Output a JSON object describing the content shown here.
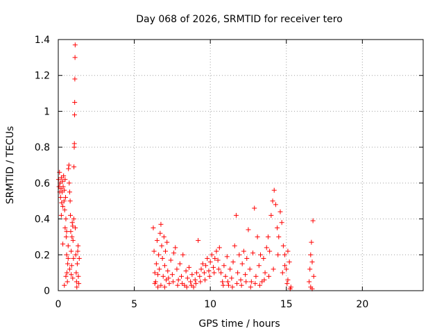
{
  "chart_data": {
    "type": "scatter",
    "title": "Day 068 of 2026, SRMTID for receiver tero",
    "xlabel": "GPS time / hours",
    "ylabel": "SRMTID / TECUs",
    "xlim": [
      0,
      24
    ],
    "ylim": [
      0,
      1.4
    ],
    "xticks": [
      0,
      5,
      10,
      15,
      20
    ],
    "xtick_labels": [
      "0",
      "5",
      "10",
      "15",
      "20"
    ],
    "yticks": [
      0,
      0.2,
      0.4,
      0.6,
      0.8,
      1.0,
      1.2,
      1.4
    ],
    "ytick_labels": [
      "0",
      "0.2",
      "0.4",
      "0.6",
      "0.8",
      "1",
      "1.2",
      "1.4"
    ],
    "grid": true,
    "legend": "none",
    "marker": "plus",
    "color": "#ff0000",
    "series": [
      {
        "points": [
          [
            0.02,
            0.62
          ],
          [
            0.05,
            0.58
          ],
          [
            0.08,
            0.66
          ],
          [
            0.1,
            0.55
          ],
          [
            0.12,
            0.6
          ],
          [
            0.15,
            0.52
          ],
          [
            0.18,
            0.57
          ],
          [
            0.2,
            0.63
          ],
          [
            0.22,
            0.49
          ],
          [
            0.25,
            0.55
          ],
          [
            0.28,
            0.61
          ],
          [
            0.3,
            0.47
          ],
          [
            0.32,
            0.58
          ],
          [
            0.35,
            0.64
          ],
          [
            0.38,
            0.5
          ],
          [
            0.4,
            0.56
          ],
          [
            0.42,
            0.45
          ],
          [
            0.45,
            0.62
          ],
          [
            0.48,
            0.52
          ],
          [
            0.5,
            0.4
          ],
          [
            0.52,
            0.3
          ],
          [
            0.55,
            0.2
          ],
          [
            0.57,
            0.1
          ],
          [
            0.6,
            0.05
          ],
          [
            0.62,
            0.15
          ],
          [
            0.65,
            0.25
          ],
          [
            0.67,
            0.68
          ],
          [
            0.7,
            0.7
          ],
          [
            0.72,
            0.6
          ],
          [
            0.75,
            0.55
          ],
          [
            0.78,
            0.5
          ],
          [
            0.8,
            0.42
          ],
          [
            0.82,
            0.33
          ],
          [
            0.85,
            0.22
          ],
          [
            0.88,
            0.14
          ],
          [
            0.9,
            0.3
          ],
          [
            0.92,
            0.38
          ],
          [
            0.95,
            0.36
          ],
          [
            0.97,
            0.28
          ],
          [
            1.0,
            0.18
          ],
          [
            1.02,
            0.4
          ],
          [
            1.03,
            0.69
          ],
          [
            1.05,
            0.8
          ],
          [
            1.06,
            0.82
          ],
          [
            1.07,
            0.98
          ],
          [
            1.08,
            1.05
          ],
          [
            1.09,
            1.18
          ],
          [
            1.1,
            1.3
          ],
          [
            1.11,
            1.37
          ],
          [
            1.12,
            0.35
          ],
          [
            1.15,
            0.2
          ],
          [
            1.18,
            0.1
          ],
          [
            1.2,
            0.05
          ],
          [
            1.22,
            0.02
          ],
          [
            1.25,
            0.15
          ],
          [
            1.28,
            0.22
          ],
          [
            1.3,
            0.25
          ],
          [
            1.32,
            0.08
          ],
          [
            1.35,
            0.04
          ],
          [
            1.38,
            0.18
          ],
          [
            0.45,
            0.35
          ],
          [
            0.55,
            0.33
          ],
          [
            0.65,
            0.18
          ],
          [
            0.75,
            0.12
          ],
          [
            0.85,
            0.09
          ],
          [
            0.95,
            0.07
          ],
          [
            0.4,
            0.03
          ],
          [
            0.5,
            0.08
          ],
          [
            0.3,
            0.26
          ],
          [
            0.2,
            0.42
          ],
          [
            6.25,
            0.35
          ],
          [
            6.3,
            0.22
          ],
          [
            6.35,
            0.1
          ],
          [
            6.4,
            0.05
          ],
          [
            6.45,
            0.15
          ],
          [
            6.5,
            0.28
          ],
          [
            6.55,
            0.02
          ],
          [
            6.6,
            0.2
          ],
          [
            6.65,
            0.12
          ],
          [
            6.7,
            0.32
          ],
          [
            6.75,
            0.37
          ],
          [
            6.8,
            0.25
          ],
          [
            6.85,
            0.18
          ],
          [
            6.9,
            0.08
          ],
          [
            6.95,
            0.3
          ],
          [
            7.0,
            0.14
          ],
          [
            7.05,
            0.22
          ],
          [
            7.1,
            0.06
          ],
          [
            7.15,
            0.27
          ],
          [
            7.2,
            0.11
          ],
          [
            7.3,
            0.04
          ],
          [
            7.4,
            0.17
          ],
          [
            7.5,
            0.09
          ],
          [
            7.6,
            0.21
          ],
          [
            7.7,
            0.24
          ],
          [
            7.8,
            0.12
          ],
          [
            7.9,
            0.06
          ],
          [
            8.0,
            0.15
          ],
          [
            8.1,
            0.08
          ],
          [
            8.2,
            0.2
          ],
          [
            8.3,
            0.03
          ],
          [
            8.4,
            0.11
          ],
          [
            8.5,
            0.07
          ],
          [
            8.6,
            0.13
          ],
          [
            8.7,
            0.05
          ],
          [
            8.8,
            0.09
          ],
          [
            8.9,
            0.02
          ],
          [
            9.0,
            0.06
          ],
          [
            9.1,
            0.1
          ],
          [
            9.2,
            0.28
          ],
          [
            9.3,
            0.08
          ],
          [
            9.4,
            0.12
          ],
          [
            9.5,
            0.15
          ],
          [
            9.6,
            0.1
          ],
          [
            9.7,
            0.14
          ],
          [
            9.8,
            0.18
          ],
          [
            9.9,
            0.11
          ],
          [
            10.0,
            0.16
          ],
          [
            10.1,
            0.2
          ],
          [
            10.2,
            0.13
          ],
          [
            10.3,
            0.18
          ],
          [
            10.4,
            0.22
          ],
          [
            10.5,
            0.17
          ],
          [
            10.6,
            0.24
          ],
          [
            10.7,
            0.1
          ],
          [
            10.8,
            0.05
          ],
          [
            10.9,
            0.14
          ],
          [
            11.0,
            0.08
          ],
          [
            11.1,
            0.19
          ],
          [
            11.2,
            0.03
          ],
          [
            11.3,
            0.12
          ],
          [
            11.4,
            0.07
          ],
          [
            11.5,
            0.16
          ],
          [
            11.6,
            0.25
          ],
          [
            11.7,
            0.42
          ],
          [
            11.8,
            0.1
          ],
          [
            11.9,
            0.2
          ],
          [
            12.0,
            0.06
          ],
          [
            12.1,
            0.15
          ],
          [
            12.2,
            0.22
          ],
          [
            12.3,
            0.09
          ],
          [
            12.4,
            0.18
          ],
          [
            12.5,
            0.34
          ],
          [
            12.6,
            0.12
          ],
          [
            12.7,
            0.05
          ],
          [
            12.8,
            0.21
          ],
          [
            12.9,
            0.46
          ],
          [
            13.0,
            0.08
          ],
          [
            13.1,
            0.3
          ],
          [
            13.2,
            0.14
          ],
          [
            13.3,
            0.2
          ],
          [
            13.4,
            0.05
          ],
          [
            13.5,
            0.18
          ],
          [
            13.6,
            0.1
          ],
          [
            13.7,
            0.24
          ],
          [
            13.8,
            0.3
          ],
          [
            13.9,
            0.22
          ],
          [
            14.0,
            0.42
          ],
          [
            14.1,
            0.5
          ],
          [
            14.2,
            0.56
          ],
          [
            14.3,
            0.48
          ],
          [
            14.4,
            0.35
          ],
          [
            14.5,
            0.3
          ],
          [
            14.6,
            0.44
          ],
          [
            14.7,
            0.38
          ],
          [
            14.8,
            0.25
          ],
          [
            14.9,
            0.2
          ],
          [
            15.0,
            0.12
          ],
          [
            15.1,
            0.06
          ],
          [
            15.2,
            0.16
          ],
          [
            15.3,
            0.02
          ],
          [
            15.1,
            0.22
          ],
          [
            14.9,
            0.14
          ],
          [
            16.5,
            0.05
          ],
          [
            16.55,
            0.12
          ],
          [
            16.6,
            0.2
          ],
          [
            16.65,
            0.27
          ],
          [
            16.7,
            0.16
          ],
          [
            16.75,
            0.39
          ],
          [
            16.8,
            0.08
          ],
          [
            6.35,
            0.04
          ],
          [
            6.55,
            0.09
          ],
          [
            6.75,
            0.03
          ],
          [
            7.0,
            0.02
          ],
          [
            7.25,
            0.07
          ],
          [
            7.55,
            0.05
          ],
          [
            7.85,
            0.03
          ],
          [
            8.15,
            0.04
          ],
          [
            8.45,
            0.02
          ],
          [
            8.75,
            0.03
          ],
          [
            9.05,
            0.04
          ],
          [
            9.35,
            0.05
          ],
          [
            9.65,
            0.06
          ],
          [
            9.95,
            0.08
          ],
          [
            10.25,
            0.1
          ],
          [
            10.55,
            0.12
          ],
          [
            10.85,
            0.03
          ],
          [
            11.15,
            0.05
          ],
          [
            11.45,
            0.02
          ],
          [
            11.75,
            0.04
          ],
          [
            12.05,
            0.03
          ],
          [
            12.35,
            0.05
          ],
          [
            12.65,
            0.02
          ],
          [
            12.95,
            0.04
          ],
          [
            13.25,
            0.03
          ],
          [
            13.55,
            0.06
          ],
          [
            13.85,
            0.08
          ],
          [
            14.15,
            0.12
          ],
          [
            14.45,
            0.2
          ],
          [
            14.75,
            0.1
          ],
          [
            15.05,
            0.04
          ],
          [
            15.25,
            0.01
          ],
          [
            16.6,
            0.02
          ],
          [
            16.7,
            0.01
          ]
        ]
      }
    ]
  }
}
